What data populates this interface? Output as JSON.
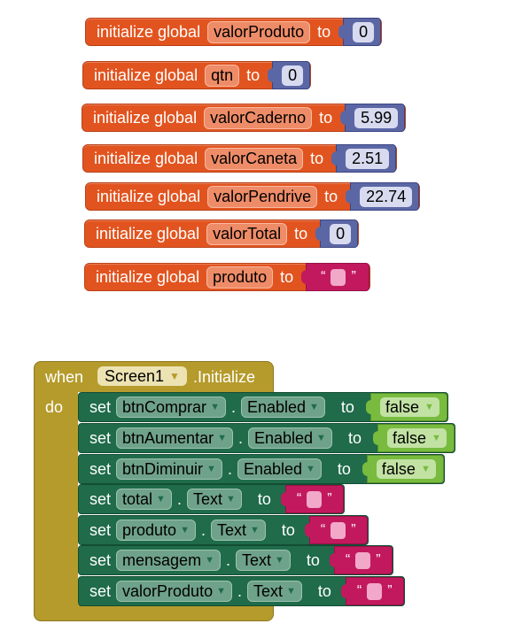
{
  "globals": [
    {
      "kw": "initialize global",
      "name": "valorProduto",
      "to": "to",
      "kind": "number",
      "value": "0"
    },
    {
      "kw": "initialize global",
      "name": "qtn",
      "to": "to",
      "kind": "number",
      "value": "0"
    },
    {
      "kw": "initialize global",
      "name": "valorCaderno",
      "to": "to",
      "kind": "number",
      "value": "5.99"
    },
    {
      "kw": "initialize global",
      "name": "valorCaneta",
      "to": "to",
      "kind": "number",
      "value": "2.51"
    },
    {
      "kw": "initialize global",
      "name": "valorPendrive",
      "to": "to",
      "kind": "number",
      "value": "22.74"
    },
    {
      "kw": "initialize global",
      "name": "valorTotal",
      "to": "to",
      "kind": "number",
      "value": "0"
    },
    {
      "kw": "initialize global",
      "name": "produto",
      "to": "to",
      "kind": "text",
      "value": ""
    }
  ],
  "event": {
    "when": "when",
    "component": "Screen1",
    "event_name": ".Initialize",
    "do": "do"
  },
  "setters": [
    {
      "set": "set",
      "component": "btnComprar",
      "dot": ".",
      "property": "Enabled",
      "to": "to",
      "kind": "bool",
      "value": "false"
    },
    {
      "set": "set",
      "component": "btnAumentar",
      "dot": ".",
      "property": "Enabled",
      "to": "to",
      "kind": "bool",
      "value": "false"
    },
    {
      "set": "set",
      "component": "btnDiminuir",
      "dot": ".",
      "property": "Enabled",
      "to": "to",
      "kind": "bool",
      "value": "false"
    },
    {
      "set": "set",
      "component": "total",
      "dot": ".",
      "property": "Text",
      "to": "to",
      "kind": "text",
      "value": ""
    },
    {
      "set": "set",
      "component": "produto",
      "dot": ".",
      "property": "Text",
      "to": "to",
      "kind": "text",
      "value": ""
    },
    {
      "set": "set",
      "component": "mensagem",
      "dot": ".",
      "property": "Text",
      "to": "to",
      "kind": "text",
      "value": ""
    },
    {
      "set": "set",
      "component": "valorProduto",
      "dot": ".",
      "property": "Text",
      "to": "to",
      "kind": "text",
      "value": ""
    }
  ],
  "glyphs": {
    "open_quote": "“",
    "close_quote": "”",
    "dropdown": "▼"
  },
  "colors": {
    "variables": "#e2541f",
    "math": "#5b67a5",
    "text": "#c2195e",
    "event": "#b59b2c",
    "component_setter": "#1f6b4a",
    "logic": "#78bb3e"
  }
}
